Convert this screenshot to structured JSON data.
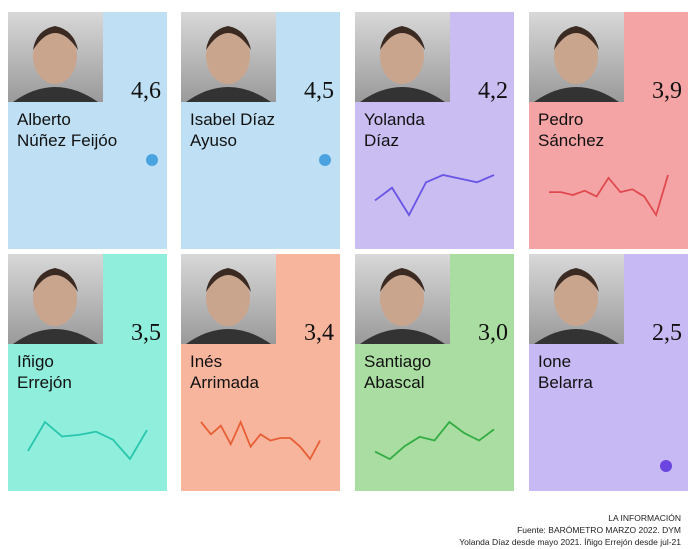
{
  "cards": [
    {
      "name": [
        "Alberto",
        "Núñez Feijóo"
      ],
      "score": "4,6",
      "color": "#bfe0f4",
      "line_color": "#4aa3e0",
      "trend": null
    },
    {
      "name": [
        "Isabel Díaz",
        "Ayuso"
      ],
      "score": "4,5",
      "color": "#bfe0f4",
      "line_color": "#4aa3e0",
      "trend": null
    },
    {
      "name": [
        "Yolanda",
        "Díaz"
      ],
      "score": "4,2",
      "color": "#c9bdf1",
      "line_color": "#6a55e6",
      "trend": [
        10,
        17,
        2,
        20,
        24,
        22,
        20,
        24
      ]
    },
    {
      "name": [
        "Pedro",
        "Sánchez"
      ],
      "score": "3,9",
      "color": "#f4a4a5",
      "line_color": "#e04a4f",
      "trend": [
        18,
        18,
        16,
        19,
        15,
        28,
        18,
        20,
        15,
        2,
        30
      ]
    },
    {
      "name": [
        "Iñigo",
        "Errejón"
      ],
      "score": "3,5",
      "color": "#90eedd",
      "line_color": "#27c6ad",
      "trend": [
        10,
        28,
        19,
        20,
        22,
        17,
        5,
        23
      ]
    },
    {
      "name": [
        "Inés",
        "Arrimada"
      ],
      "score": "3,4",
      "color": "#f8b59e",
      "line_color": "#e85f36",
      "trend": [
        35,
        25,
        32,
        17,
        35,
        15,
        25,
        20,
        22,
        22,
        15,
        5,
        20
      ]
    },
    {
      "name": [
        "Santiago",
        "Abascal"
      ],
      "score": "3,0",
      "color": "#aadda1",
      "line_color": "#33ad43",
      "trend": [
        7,
        3,
        10,
        15,
        13,
        23,
        17,
        13,
        19
      ]
    },
    {
      "name": [
        "Ione",
        "Belarra"
      ],
      "score": "2,5",
      "color": "#c7b9f3",
      "line_color": "#6a45df",
      "trend": null
    }
  ],
  "footer": [
    "LA INFORMACIÓN",
    "Fuente: BARÓMETRO MARZO 2022. DYM",
    "Yolanda Díaz desde mayo 2021. Íñigo Errejón desde jul-21"
  ]
}
